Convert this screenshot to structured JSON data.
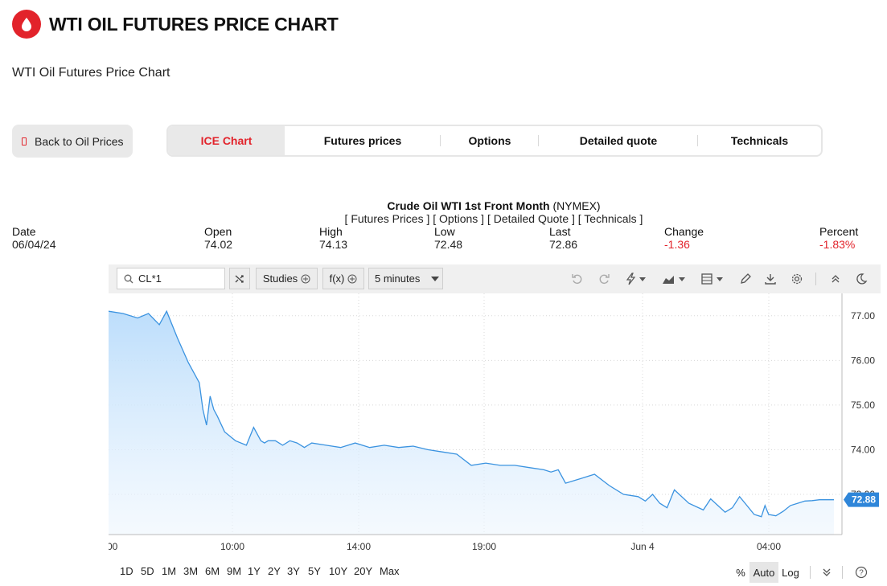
{
  "header": {
    "title": "WTI OIL FUTURES PRICE CHART",
    "subtitle": "WTI Oil Futures Price Chart",
    "logo_icon": "oil-drop-icon",
    "accent": "#e2232b"
  },
  "back_button": {
    "label": "Back to Oil Prices"
  },
  "tabs": [
    {
      "label": "ICE Chart",
      "active": true
    },
    {
      "label": "Futures prices"
    },
    {
      "label": "Options"
    },
    {
      "label": "Detailed quote"
    },
    {
      "label": "Technicals"
    }
  ],
  "instrument": {
    "name": "Crude Oil WTI 1st Front Month",
    "exchange": "(NYMEX)",
    "links": "[ Futures Prices ] [ Options ] [ Detailed Quote ] [ Technicals ]"
  },
  "stats": {
    "date": {
      "label": "Date",
      "value": "06/04/24"
    },
    "open": {
      "label": "Open",
      "value": "74.02"
    },
    "high": {
      "label": "High",
      "value": "74.13"
    },
    "low": {
      "label": "Low",
      "value": "72.48"
    },
    "last": {
      "label": "Last",
      "value": "72.86"
    },
    "change": {
      "label": "Change",
      "value": "-1.36"
    },
    "percent": {
      "label": "Percent",
      "value": "-1.83%"
    }
  },
  "toolbar": {
    "symbol": "CL*1",
    "studies_label": "Studies",
    "fx_label": "f(x)",
    "interval": "5 minutes",
    "icons": [
      "undo-icon",
      "redo-icon",
      "lightning-icon",
      "chart-type-icon",
      "layout-icon",
      "pencil-icon",
      "download-icon",
      "gear-icon",
      "collapse-icon",
      "dark-mode-icon"
    ]
  },
  "bottom_bar": {
    "ranges": [
      "1D",
      "5D",
      "1M",
      "3M",
      "6M",
      "9M",
      "1Y",
      "2Y",
      "3Y",
      "5Y",
      "10Y",
      "20Y",
      "Max"
    ],
    "percent_label": "%",
    "auto_label": "Auto",
    "log_label": "Log",
    "help_icon": "help-icon"
  },
  "chart_data": {
    "type": "area",
    "x_ticks": [
      "00",
      "10:00",
      "14:00",
      "19:00",
      "Jun 4",
      "04:00"
    ],
    "y_ticks": [
      "77.00",
      "76.00",
      "75.00",
      "74.00",
      "73.00"
    ],
    "ylim": [
      72.1,
      77.5
    ],
    "last_price_label": "72.88",
    "series": [
      {
        "x": [
          0,
          0.02,
          0.04,
          0.055,
          0.07,
          0.08,
          0.095,
          0.11,
          0.125,
          0.13,
          0.135,
          0.14,
          0.145,
          0.15,
          0.16,
          0.175,
          0.19,
          0.2,
          0.21,
          0.215,
          0.22,
          0.23,
          0.24,
          0.25,
          0.26,
          0.27,
          0.28,
          0.3,
          0.32,
          0.34,
          0.36,
          0.38,
          0.4,
          0.42,
          0.44,
          0.46,
          0.48,
          0.5,
          0.52,
          0.54,
          0.56,
          0.58,
          0.6,
          0.61,
          0.62,
          0.63,
          0.65,
          0.67,
          0.69,
          0.71,
          0.73,
          0.74,
          0.75,
          0.76,
          0.77,
          0.78,
          0.8,
          0.82,
          0.83,
          0.84,
          0.85,
          0.86,
          0.87,
          0.88,
          0.89,
          0.9,
          0.905,
          0.91,
          0.92,
          0.93,
          0.94,
          0.95,
          0.96,
          0.97,
          0.98,
          0.99,
          1.0
        ],
        "y": [
          77.1,
          77.05,
          76.95,
          77.05,
          76.8,
          77.1,
          76.5,
          75.95,
          75.5,
          74.9,
          74.55,
          75.2,
          74.9,
          74.75,
          74.4,
          74.2,
          74.1,
          74.5,
          74.2,
          74.15,
          74.2,
          74.2,
          74.1,
          74.2,
          74.15,
          74.05,
          74.15,
          74.1,
          74.05,
          74.15,
          74.05,
          74.1,
          74.05,
          74.08,
          74.0,
          73.95,
          73.9,
          73.65,
          73.7,
          73.65,
          73.65,
          73.6,
          73.55,
          73.5,
          73.55,
          73.25,
          73.35,
          73.45,
          73.2,
          73.0,
          72.95,
          72.85,
          73.0,
          72.8,
          72.7,
          73.1,
          72.8,
          72.65,
          72.9,
          72.75,
          72.6,
          72.7,
          72.95,
          72.75,
          72.55,
          72.5,
          72.75,
          72.55,
          72.52,
          72.62,
          72.75,
          72.8,
          72.85,
          72.86,
          72.88,
          72.88,
          72.88
        ]
      }
    ]
  }
}
